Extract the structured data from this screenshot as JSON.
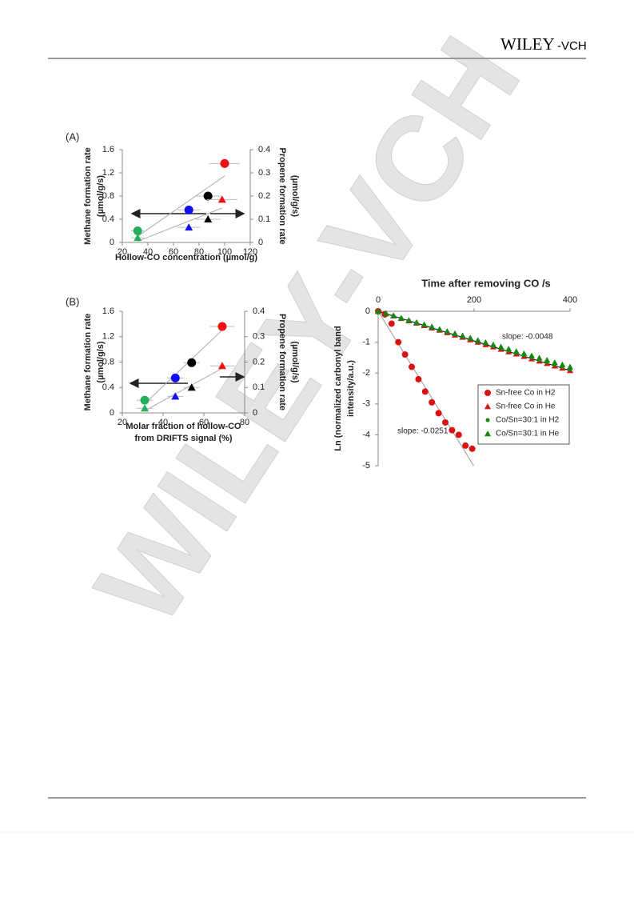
{
  "header": {
    "brand": "WILEY",
    "brand_suffix": "-VCH"
  },
  "watermark": "WILEY-VCH",
  "chart_data": [
    {
      "type": "scatter",
      "panel": "(A)",
      "xlabel": "Hollow-CO concentration (µmol/g)",
      "ylabel": [
        "Methane formation rate",
        "(µmol/g/s)"
      ],
      "y2label": [
        "Propene formation rate",
        "(µmol/g/s)"
      ],
      "xlim": [
        20,
        120
      ],
      "xticks": [
        20,
        40,
        60,
        80,
        100,
        120
      ],
      "ylim": [
        0,
        1.6
      ],
      "yticks": [
        0,
        0.4,
        0.8,
        1.2,
        1.6
      ],
      "y2lim": [
        0,
        0.4
      ],
      "y2ticks": [
        0,
        0.1,
        0.2,
        0.3,
        0.4
      ],
      "trendline": true,
      "series": [
        {
          "marker": "circle",
          "colors": [
            "#22b05a",
            "#1010ee",
            "#000000",
            "#ee1111"
          ],
          "x": [
            32,
            72,
            87,
            100
          ],
          "values": [
            0.2,
            0.56,
            0.8,
            1.36
          ],
          "xerr": [
            5,
            9,
            10,
            12
          ]
        },
        {
          "marker": "triangle",
          "axis": "y2",
          "colors": [
            "#22b05a",
            "#1010ee",
            "#000000",
            "#ee1111"
          ],
          "x": [
            32,
            72,
            87,
            98
          ],
          "values": [
            0.02,
            0.065,
            0.1,
            0.185
          ],
          "xerr": [
            5,
            9,
            10,
            12
          ]
        }
      ]
    },
    {
      "type": "scatter",
      "panel": "(B)",
      "xlabel": [
        "Molar fraction of hollow-CO",
        "from DRIFTS signal (%)"
      ],
      "ylabel": [
        "Methane formation rate",
        "(µmol/g/s)"
      ],
      "y2label": [
        "Propene formation rate",
        "(µmol/g/s)"
      ],
      "xlim": [
        20,
        80
      ],
      "xticks": [
        20,
        40,
        60,
        80
      ],
      "ylim": [
        0,
        1.6
      ],
      "yticks": [
        0,
        0.4,
        0.8,
        1.2,
        1.6
      ],
      "y2lim": [
        0,
        0.4
      ],
      "y2ticks": [
        0,
        0.1,
        0.2,
        0.3,
        0.4
      ],
      "trendline": true,
      "series": [
        {
          "marker": "circle",
          "colors": [
            "#22b05a",
            "#1010ee",
            "#000000",
            "#ee1111"
          ],
          "x": [
            31,
            46,
            54,
            69
          ],
          "values": [
            0.2,
            0.55,
            0.79,
            1.36
          ],
          "xerr": [
            4,
            4,
            4,
            6
          ]
        },
        {
          "marker": "triangle",
          "axis": "y2",
          "colors": [
            "#22b05a",
            "#1010ee",
            "#000000",
            "#ee1111"
          ],
          "x": [
            31,
            46,
            54,
            69
          ],
          "values": [
            0.018,
            0.065,
            0.1,
            0.185
          ],
          "xerr": [
            4,
            4,
            4,
            6
          ]
        }
      ]
    },
    {
      "type": "scatter",
      "xlabel": "Time after removing CO /s",
      "ylabel": [
        "Ln (normalized carbonyl band",
        "intensity/a.u.)"
      ],
      "xlim": [
        0,
        400
      ],
      "xticks": [
        0,
        200,
        400
      ],
      "ylim": [
        -5,
        0
      ],
      "yticks": [
        0,
        -1,
        -2,
        -3,
        -4,
        -5
      ],
      "legend": "lower right",
      "annotations": [
        {
          "value": -0.0048,
          "label": "slope: -0.0048",
          "color": "#000000"
        },
        {
          "value": -0.0251,
          "label": "slope: -0.0251",
          "color": "#999999"
        }
      ],
      "series": [
        {
          "name": "Sn-free Co in H2",
          "marker": "circle",
          "color": "#dd1111",
          "x": [
            0,
            14,
            28,
            42,
            56,
            70,
            84,
            98,
            112,
            126,
            140,
            154,
            168,
            182,
            196
          ],
          "values": [
            0,
            -0.1,
            -0.4,
            -1.0,
            -1.4,
            -1.8,
            -2.2,
            -2.6,
            -2.95,
            -3.3,
            -3.6,
            -3.85,
            -4.0,
            -4.35,
            -4.45
          ]
        },
        {
          "name": "Sn-free Co in He",
          "marker": "triangle",
          "color": "#dd1111",
          "x": [
            0,
            16,
            32,
            48,
            64,
            80,
            96,
            112,
            128,
            144,
            160,
            176,
            192,
            208,
            224,
            240,
            256,
            272,
            288,
            304,
            320,
            336,
            352,
            368,
            384,
            400
          ],
          "values": [
            0,
            -0.08,
            -0.15,
            -0.23,
            -0.31,
            -0.38,
            -0.46,
            -0.54,
            -0.61,
            -0.69,
            -0.77,
            -0.84,
            -0.92,
            -1.0,
            -1.08,
            -1.15,
            -1.23,
            -1.31,
            -1.38,
            -1.46,
            -1.54,
            -1.61,
            -1.69,
            -1.77,
            -1.84,
            -1.92
          ]
        },
        {
          "name": "Co/Sn=30:1 in H2",
          "marker": "circle",
          "color": "#118811",
          "x": [
            0,
            16,
            32,
            48,
            64,
            80,
            96,
            112,
            128,
            144,
            160,
            176,
            192,
            208,
            224,
            240,
            256,
            272,
            288,
            304,
            320,
            336,
            352,
            368,
            384,
            400
          ],
          "values": [
            0,
            -0.08,
            -0.15,
            -0.23,
            -0.3,
            -0.38,
            -0.45,
            -0.53,
            -0.6,
            -0.68,
            -0.75,
            -0.83,
            -0.9,
            -0.98,
            -1.05,
            -1.13,
            -1.2,
            -1.28,
            -1.35,
            -1.43,
            -1.5,
            -1.58,
            -1.65,
            -1.73,
            -1.8,
            -1.88
          ]
        },
        {
          "name": "Co/Sn=30:1 in He",
          "marker": "triangle",
          "color": "#118811",
          "x": [
            0,
            16,
            32,
            48,
            64,
            80,
            96,
            112,
            128,
            144,
            160,
            176,
            192,
            208,
            224,
            240,
            256,
            272,
            288,
            304,
            320,
            336,
            352,
            368,
            384,
            400
          ],
          "values": [
            0,
            -0.07,
            -0.14,
            -0.22,
            -0.29,
            -0.36,
            -0.43,
            -0.5,
            -0.58,
            -0.65,
            -0.72,
            -0.79,
            -0.86,
            -0.94,
            -1.01,
            -1.08,
            -1.15,
            -1.22,
            -1.3,
            -1.37,
            -1.44,
            -1.51,
            -1.58,
            -1.66,
            -1.73,
            -1.8
          ]
        }
      ]
    }
  ]
}
